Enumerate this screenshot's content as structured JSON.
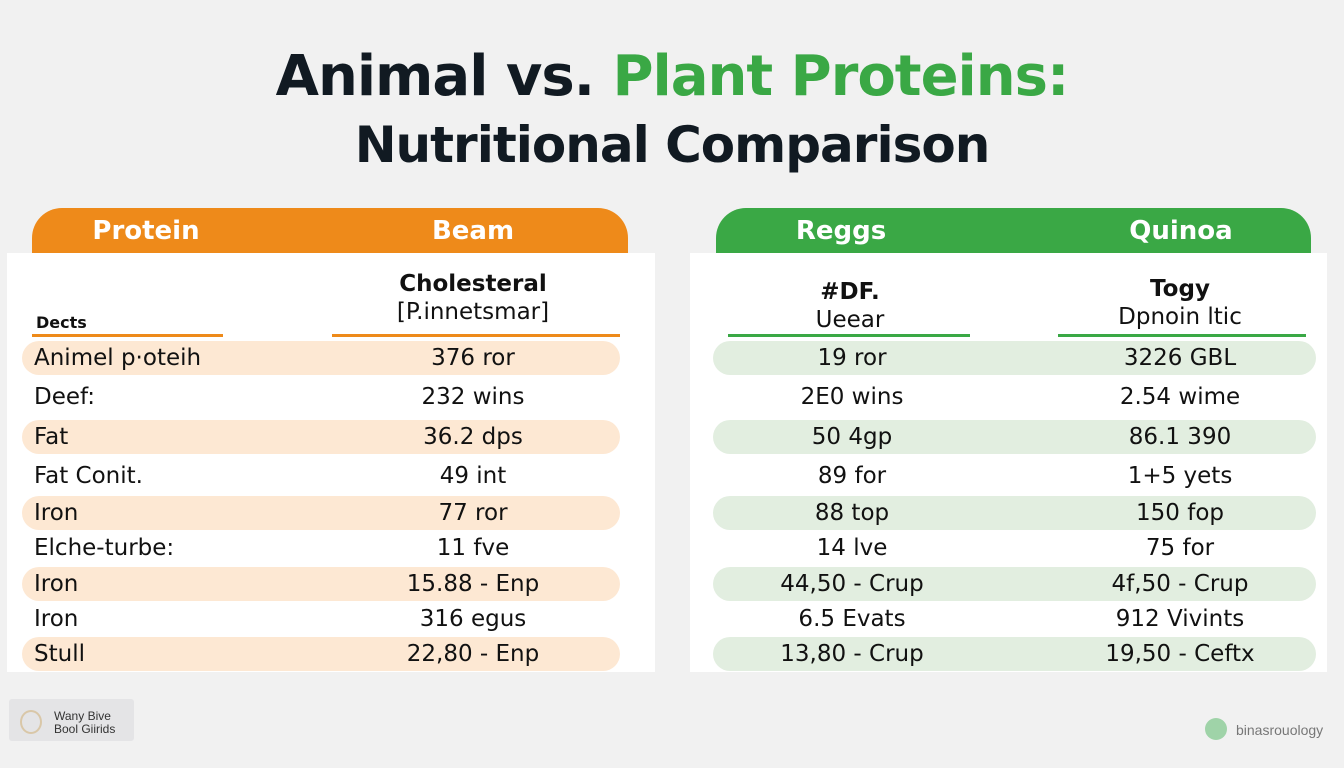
{
  "title": {
    "part1": "Animal vs. ",
    "part2": "Plant Proteins:",
    "subtitle": "Nutritional Comparison"
  },
  "colors": {
    "orange": "#ee8a1a",
    "green": "#3aa845",
    "orange_row": "#fde8d3",
    "green_row": "#e2eee0"
  },
  "left_table": {
    "headers": [
      "Protein",
      "Beam"
    ],
    "subheaders": [
      "Dects",
      "Cholesteral",
      "[P.innetsmar]"
    ],
    "rows": [
      [
        "Animel p·oteih",
        "376 ror"
      ],
      [
        "Deef:",
        "232 wins"
      ],
      [
        "Fat",
        "36.2 dps"
      ],
      [
        "Fat Conit.",
        "49 int"
      ],
      [
        "Iron",
        "77 ror"
      ],
      [
        "Elche-turbe:",
        "11 fve"
      ],
      [
        "Iron",
        "15.88 - Enp"
      ],
      [
        "Iron",
        "316 egus"
      ],
      [
        "Stull",
        "22,80 - Enp"
      ]
    ]
  },
  "right_table": {
    "headers": [
      "Reggs",
      "Quinoa"
    ],
    "subheaders": [
      "#DF.",
      "Ueear",
      "Togy",
      "Dpnoin ltic"
    ],
    "rows": [
      [
        "19 ror",
        "3226 GBL"
      ],
      [
        "2E0 wins",
        "2.54 wime"
      ],
      [
        "50 4gp",
        "86.1 390"
      ],
      [
        "89 for",
        "1+5 yets"
      ],
      [
        "88 top",
        "150 fop"
      ],
      [
        "14 lve",
        "75 for"
      ],
      [
        "44,50 - Crup",
        "4f,50 - Crup"
      ],
      [
        "6.5 Evats",
        "912 Vivints"
      ],
      [
        "13,80 - Crup",
        "19,50 - Ceftx"
      ]
    ]
  },
  "footer": {
    "left_line1": "Wany Bive",
    "left_line2": "Bool Giirids",
    "brand": "binasrouology"
  }
}
